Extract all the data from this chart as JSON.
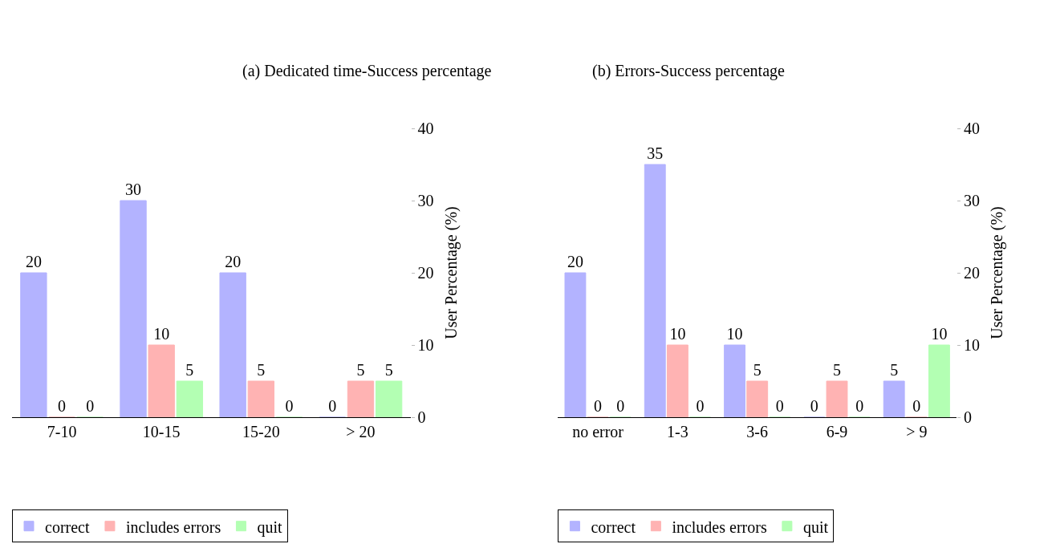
{
  "chart_data": [
    {
      "type": "bar",
      "title": "(a) Dedicated time-Success percentage",
      "ylabel": "User Percentage (%)",
      "categories": [
        "7-10",
        "10-15",
        "15-20",
        "> 20"
      ],
      "series": [
        {
          "name": "correct",
          "color": "#b3b3ff",
          "values": [
            20,
            30,
            20,
            0
          ]
        },
        {
          "name": "includes errors",
          "color": "#ffb3b3",
          "values": [
            0,
            10,
            5,
            5
          ]
        },
        {
          "name": "quit",
          "color": "#b3ffb3",
          "values": [
            0,
            5,
            0,
            5
          ]
        }
      ],
      "ylim": [
        0,
        40
      ],
      "yticks": [
        0,
        10,
        20,
        30,
        40
      ],
      "legend": "bottom",
      "data_labels": true
    },
    {
      "type": "bar",
      "title": "(b) Errors-Success percentage",
      "ylabel": "User Percentage (%)",
      "categories": [
        "no error",
        "1-3",
        "3-6",
        "6-9",
        "> 9"
      ],
      "series": [
        {
          "name": "correct",
          "color": "#b3b3ff",
          "values": [
            20,
            35,
            10,
            0,
            5
          ]
        },
        {
          "name": "includes errors",
          "color": "#ffb3b3",
          "values": [
            0,
            10,
            5,
            5,
            0
          ]
        },
        {
          "name": "quit",
          "color": "#b3ffb3",
          "values": [
            0,
            0,
            0,
            0,
            10
          ]
        }
      ],
      "ylim": [
        0,
        40
      ],
      "yticks": [
        0,
        10,
        20,
        30,
        40
      ],
      "legend": "bottom",
      "data_labels": true
    }
  ]
}
